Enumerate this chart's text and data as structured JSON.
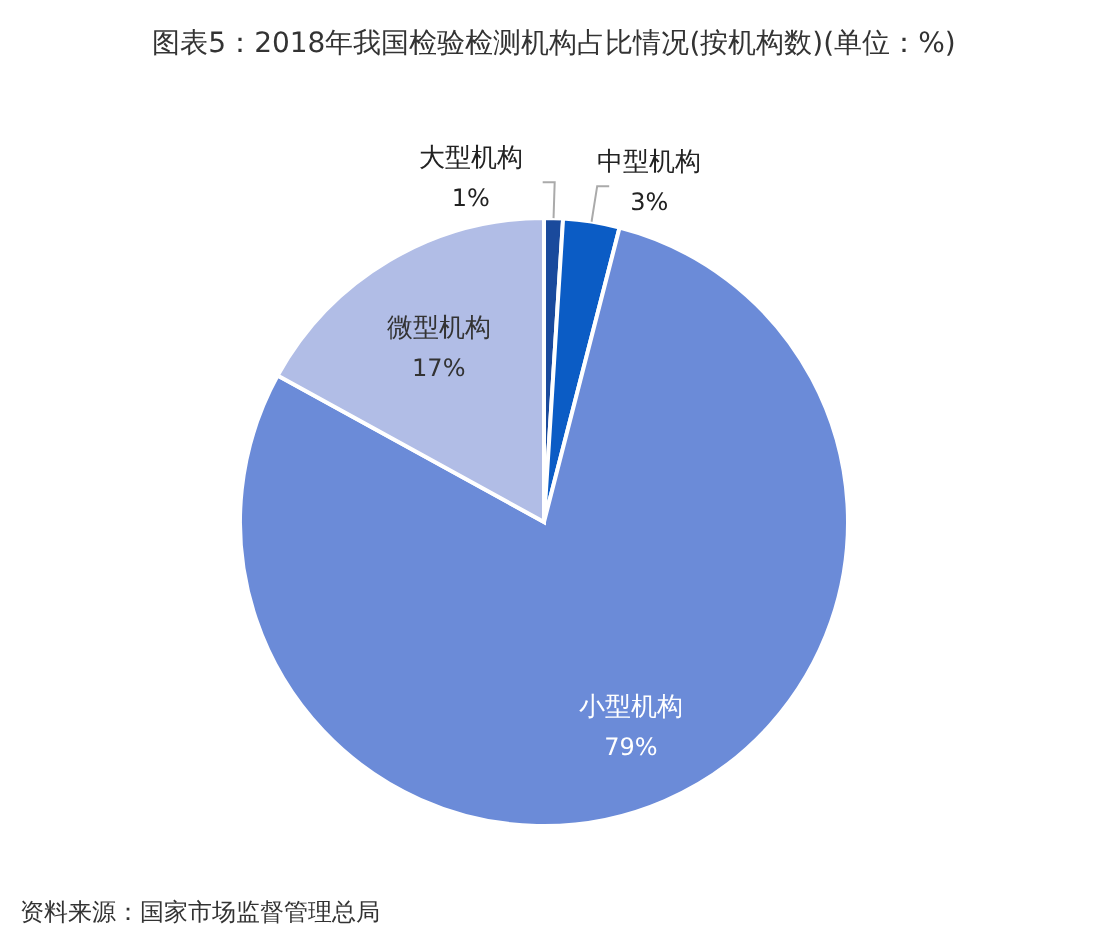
{
  "chart_data": {
    "type": "pie",
    "title": "图表5：2018年我国检验检测机构占比情况(按机构数)(单位：%)",
    "categories": [
      "大型机构",
      "中型机构",
      "小型机构",
      "微型机构"
    ],
    "values": [
      1,
      3,
      79,
      17
    ],
    "colors": [
      "#1a4a9c",
      "#0b5cc5",
      "#6b8bd8",
      "#b1bde6"
    ],
    "value_labels": [
      "1%",
      "3%",
      "79%",
      "17%"
    ],
    "annotations": [
      "资料来源：国家市场监督管理总局"
    ]
  }
}
